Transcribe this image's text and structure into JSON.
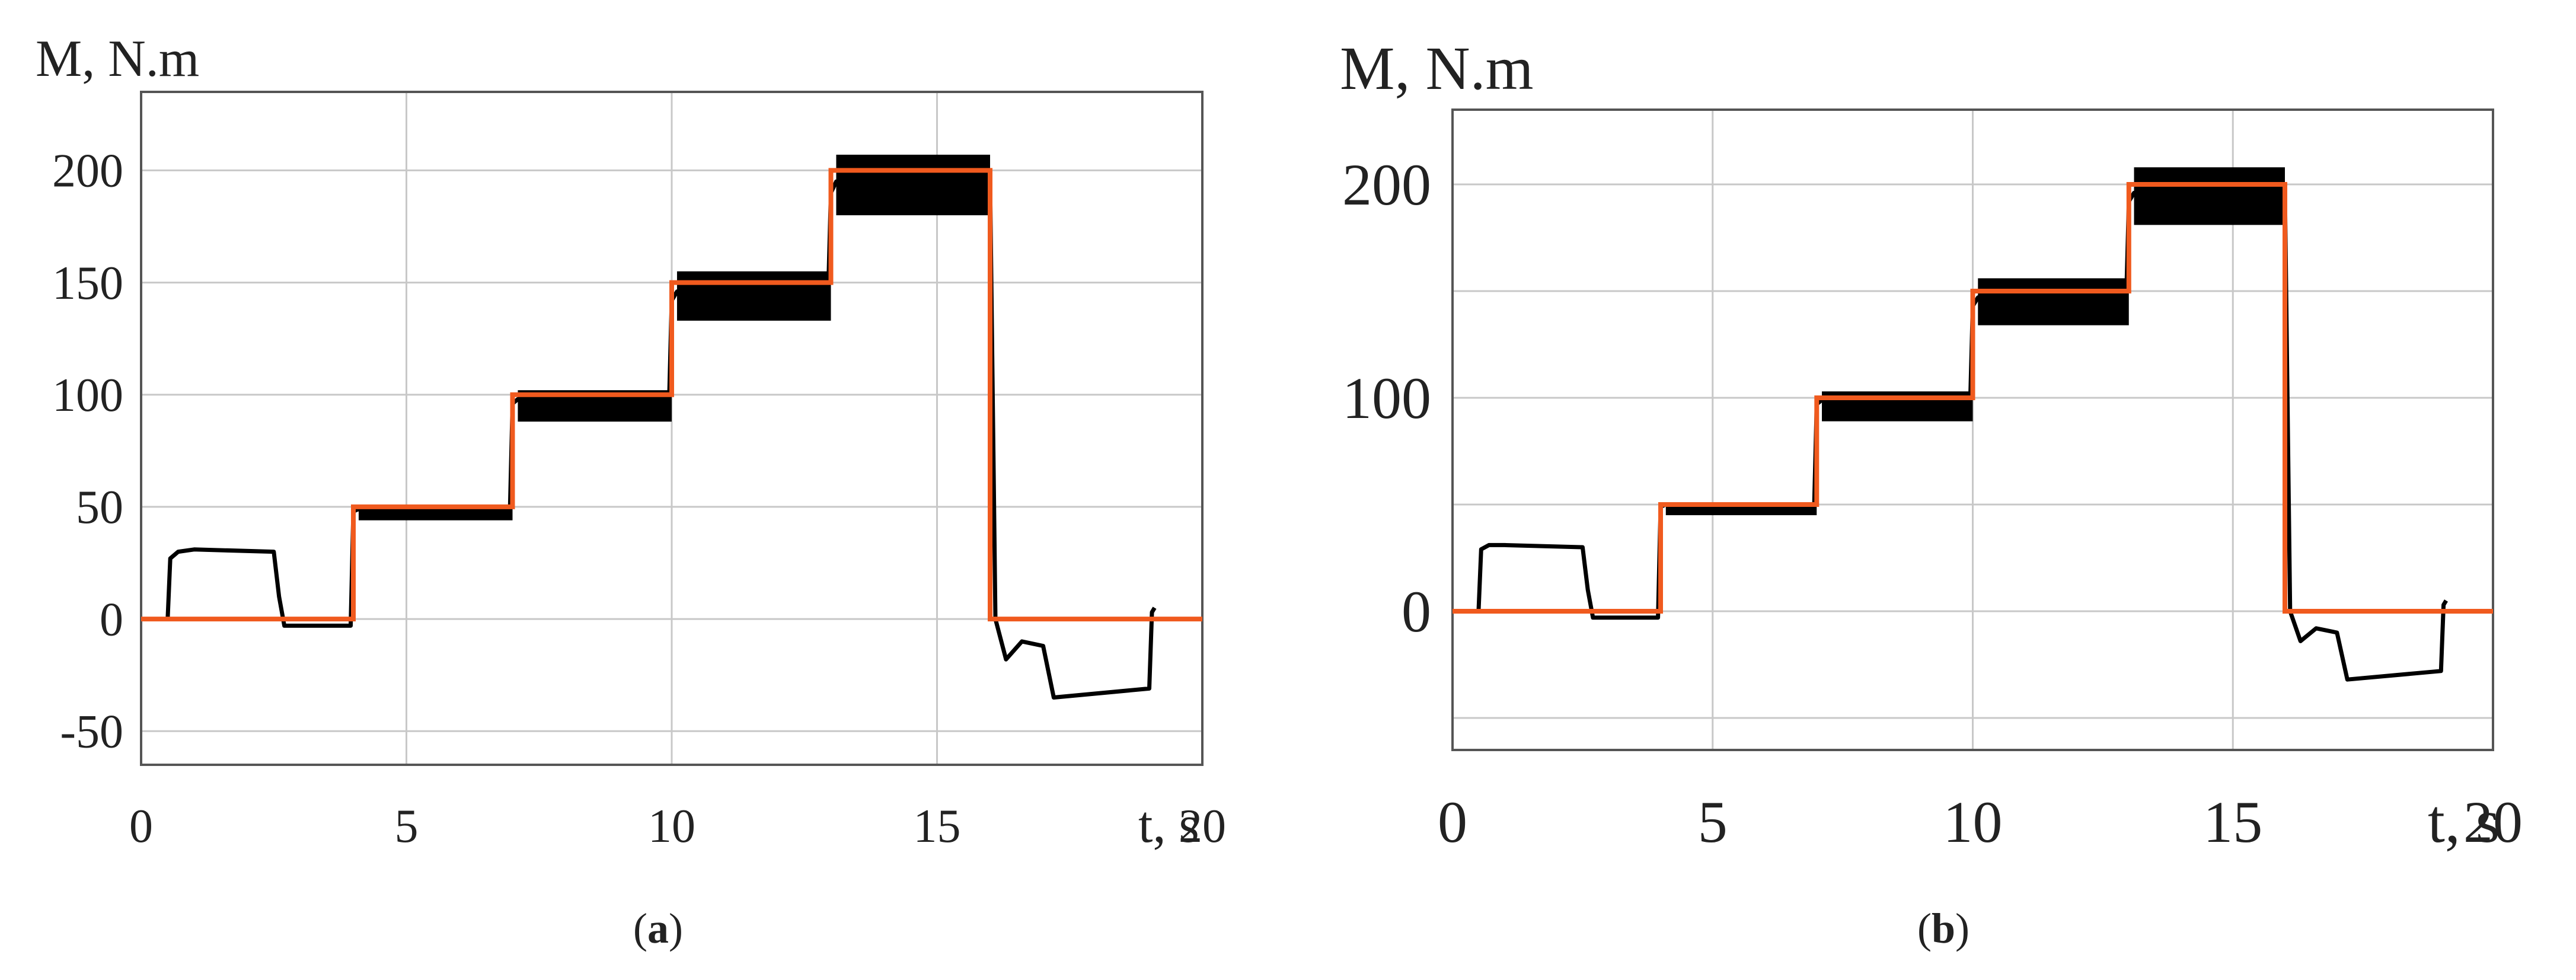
{
  "colors": {
    "measured": "#000000",
    "reference": "#f05a1e",
    "grid": "#c8c8c8",
    "frame": "#555555"
  },
  "panels": [
    {
      "caption_open": "(",
      "caption_letter": "a",
      "caption_close": ")",
      "ylabel": "M, N.m",
      "xlabel": "t, s"
    },
    {
      "caption_open": "(",
      "caption_letter": "b",
      "caption_close": ")",
      "ylabel": "M, N.m",
      "xlabel": "t, s"
    }
  ],
  "chart_data": [
    {
      "type": "line",
      "xlabel": "t, s",
      "ylabel": "M, N.m",
      "xlim": [
        0,
        20
      ],
      "ylim": [
        -65,
        235
      ],
      "xticks": [
        0,
        5,
        10,
        15,
        20
      ],
      "yticks": [
        -50,
        0,
        50,
        100,
        150,
        200
      ],
      "grid": true,
      "series": [
        {
          "role": "reference",
          "x": [
            0,
            4,
            4,
            7,
            7,
            10,
            10,
            13,
            13,
            16,
            16,
            20
          ],
          "y": [
            0,
            0,
            50,
            50,
            100,
            100,
            150,
            150,
            200,
            200,
            0,
            0
          ]
        },
        {
          "role": "measured",
          "x": [
            0.5,
            0.55,
            0.7,
            1.0,
            2.5,
            2.6,
            2.7,
            3.0,
            3.95,
            4.0,
            4.1,
            6.95,
            7.0,
            7.1,
            9.95,
            10.0,
            10.1,
            12.95,
            13.0,
            13.1,
            16.0,
            16.1,
            16.3,
            16.6,
            17.0,
            17.2,
            19.0,
            19.05,
            19.1
          ],
          "y": [
            0,
            27,
            30,
            31,
            30,
            10,
            -3,
            -3,
            -3,
            48,
            49,
            47,
            96,
            98,
            96,
            142,
            146,
            146,
            190,
            195,
            196,
            0,
            -18,
            -10,
            -12,
            -35,
            -31,
            3,
            5
          ],
          "band": [
            {
              "x": [
                4.1,
                7.0
              ],
              "min": 44,
              "max": 51
            },
            {
              "x": [
                7.1,
                10.0
              ],
              "min": 88,
              "max": 102
            },
            {
              "x": [
                10.1,
                13.0
              ],
              "min": 133,
              "max": 155
            },
            {
              "x": [
                13.1,
                16.0
              ],
              "min": 180,
              "max": 207
            }
          ]
        }
      ]
    },
    {
      "type": "line",
      "xlabel": "t, s",
      "ylabel": "M, N.m",
      "xlim": [
        0,
        20
      ],
      "ylim": [
        -65,
        235
      ],
      "xticks": [
        0,
        5,
        10,
        15,
        20
      ],
      "yticks": [
        0,
        100,
        200
      ],
      "grid": true,
      "minor_grid_y": [
        -50,
        50,
        150
      ],
      "series": [
        {
          "role": "reference",
          "x": [
            0,
            4,
            4,
            7,
            7,
            10,
            10,
            13,
            13,
            16,
            16,
            20
          ],
          "y": [
            0,
            0,
            50,
            50,
            100,
            100,
            150,
            150,
            200,
            200,
            0,
            0
          ]
        },
        {
          "role": "measured",
          "x": [
            0.5,
            0.55,
            0.7,
            1.0,
            2.5,
            2.6,
            2.7,
            3.0,
            3.95,
            4.0,
            4.1,
            6.95,
            7.0,
            7.1,
            9.95,
            10.0,
            10.1,
            12.95,
            13.0,
            13.1,
            16.0,
            16.1,
            16.3,
            16.6,
            17.0,
            17.2,
            19.0,
            19.05,
            19.1
          ],
          "y": [
            0,
            29,
            31,
            31,
            30,
            10,
            -3,
            -3,
            -3,
            49,
            50,
            48,
            97,
            99,
            97,
            143,
            147,
            147,
            192,
            196,
            197,
            0,
            -14,
            -8,
            -10,
            -32,
            -28,
            3,
            5
          ],
          "band": [
            {
              "x": [
                4.1,
                7.0
              ],
              "min": 45,
              "max": 51
            },
            {
              "x": [
                7.1,
                10.0
              ],
              "min": 89,
              "max": 103
            },
            {
              "x": [
                10.1,
                13.0
              ],
              "min": 134,
              "max": 156
            },
            {
              "x": [
                13.1,
                16.0
              ],
              "min": 181,
              "max": 208
            }
          ]
        }
      ]
    }
  ]
}
